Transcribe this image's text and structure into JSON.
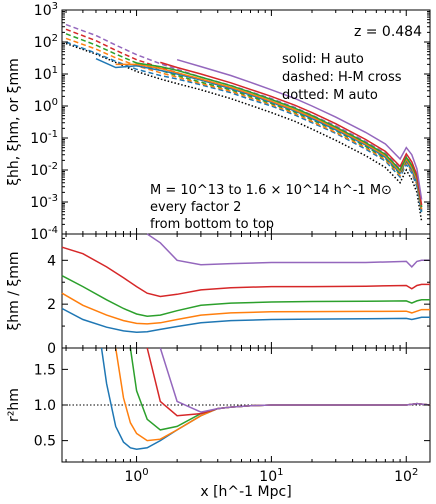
{
  "chart_data": [
    {
      "type": "line",
      "panel": "top",
      "ylabel": "ξhh, ξhm, or ξmm",
      "yscale": "log",
      "xscale": "log",
      "xlim": [
        0.28,
        150
      ],
      "ylim": [
        0.0001,
        1000
      ],
      "y_tick_labels": [
        "10^-4",
        "10^-3",
        "10^-2",
        "10^-1",
        "10^0",
        "10^1",
        "10^2",
        "10^3"
      ],
      "annotations": {
        "redshift": "z = 0.484",
        "legend_solid": "solid: H auto",
        "legend_dashed": "dashed: H-M cross",
        "legend_dotted": "dotted: M auto",
        "mass_line1": "M = 10^13 to 1.6 × 10^14 h^-1 M⊙",
        "mass_line2": "every factor 2",
        "mass_line3": "from bottom to top"
      },
      "colors": [
        "#1f77b4",
        "#ff7f0e",
        "#2ca02c",
        "#d62728",
        "#9467bd"
      ],
      "x": [
        0.3,
        0.5,
        0.7,
        1,
        1.5,
        2,
        3,
        5,
        7,
        10,
        15,
        20,
        30,
        50,
        70,
        90,
        100,
        110,
        120,
        130
      ],
      "series_solid": [
        [
          null,
          30,
          16,
          18,
          13,
          10,
          6.5,
          3.5,
          2.2,
          1.3,
          0.7,
          0.4,
          0.18,
          0.06,
          0.025,
          0.008,
          0.02,
          0.01,
          0.004,
          0.0005
        ],
        [
          null,
          null,
          20,
          20,
          15,
          11,
          7,
          3.8,
          2.4,
          1.4,
          0.75,
          0.45,
          0.2,
          0.065,
          0.028,
          0.009,
          0.022,
          0.012,
          0.005,
          0.0006
        ],
        [
          null,
          null,
          null,
          22,
          17,
          13,
          8,
          4.3,
          2.7,
          1.6,
          0.85,
          0.5,
          0.22,
          0.072,
          0.031,
          0.01,
          0.025,
          0.014,
          0.006,
          0.0007
        ],
        [
          null,
          null,
          null,
          null,
          23,
          16,
          10,
          5.3,
          3.3,
          2,
          1.05,
          0.62,
          0.28,
          0.09,
          0.038,
          0.013,
          0.032,
          0.018,
          0.007,
          0.0008
        ],
        [
          null,
          null,
          null,
          null,
          null,
          28,
          17,
          9,
          5.5,
          3.2,
          1.7,
          1,
          0.45,
          0.15,
          0.065,
          0.022,
          0.05,
          0.03,
          0.011,
          0.0012
        ]
      ],
      "series_dashed": [
        [
          100,
          45,
          25,
          14,
          9,
          7,
          4.6,
          2.6,
          1.6,
          1,
          0.52,
          0.3,
          0.14,
          0.045,
          0.019,
          0.006,
          0.015,
          0.008,
          0.003,
          0.0004
        ],
        [
          130,
          60,
          32,
          18,
          11,
          8,
          5,
          2.9,
          1.8,
          1.1,
          0.58,
          0.33,
          0.15,
          0.05,
          0.021,
          0.0068,
          0.017,
          0.009,
          0.0035,
          0.00045
        ],
        [
          180,
          80,
          42,
          22,
          13,
          9,
          5.6,
          3.2,
          2,
          1.2,
          0.64,
          0.37,
          0.17,
          0.055,
          0.023,
          0.0075,
          0.019,
          0.01,
          0.004,
          0.0005
        ],
        [
          250,
          110,
          55,
          28,
          16,
          11,
          6.5,
          3.6,
          2.3,
          1.4,
          0.72,
          0.42,
          0.19,
          0.062,
          0.026,
          0.0085,
          0.021,
          0.011,
          0.0045,
          0.00055
        ],
        [
          350,
          160,
          80,
          40,
          21,
          14,
          8,
          4.4,
          2.8,
          1.7,
          0.9,
          0.52,
          0.24,
          0.078,
          0.033,
          0.011,
          0.027,
          0.014,
          0.0055,
          0.0007
        ]
      ],
      "series_dotted": [
        90,
        42,
        23,
        12,
        7,
        5,
        3.2,
        1.7,
        1.05,
        0.62,
        0.33,
        0.19,
        0.085,
        0.028,
        0.012,
        0.004,
        0.01,
        0.005,
        0.002,
        0.00025
      ]
    },
    {
      "type": "line",
      "panel": "middle",
      "ylabel": "ξhm / ξmm",
      "xscale": "log",
      "xlim": [
        0.28,
        150
      ],
      "ylim": [
        0,
        5.2
      ],
      "y_ticks": [
        0,
        2,
        4
      ],
      "x": [
        0.28,
        0.4,
        0.6,
        0.8,
        1,
        1.2,
        1.5,
        2,
        3,
        5,
        10,
        20,
        50,
        100,
        110,
        120,
        130,
        150
      ],
      "series": [
        [
          1.8,
          1.3,
          0.95,
          0.78,
          0.72,
          0.74,
          0.85,
          0.98,
          1.15,
          1.25,
          1.3,
          1.32,
          1.33,
          1.35,
          1.3,
          1.35,
          1.4,
          1.4
        ],
        [
          2.5,
          1.95,
          1.5,
          1.25,
          1.12,
          1.1,
          1.15,
          1.3,
          1.5,
          1.6,
          1.65,
          1.66,
          1.67,
          1.68,
          1.6,
          1.68,
          1.75,
          1.75
        ],
        [
          3.3,
          2.8,
          2.2,
          1.8,
          1.55,
          1.45,
          1.5,
          1.7,
          1.95,
          2.05,
          2.1,
          2.12,
          2.13,
          2.15,
          2.05,
          2.15,
          2.2,
          2.2
        ],
        [
          4.6,
          4.3,
          3.7,
          3.2,
          2.8,
          2.5,
          2.35,
          2.45,
          2.65,
          2.75,
          2.8,
          2.8,
          2.82,
          2.85,
          2.7,
          2.85,
          2.9,
          2.9
        ],
        [
          null,
          null,
          null,
          null,
          null,
          5.2,
          4.8,
          4.0,
          3.8,
          3.85,
          3.9,
          3.9,
          3.9,
          3.95,
          3.7,
          3.95,
          4.0,
          4.0
        ]
      ]
    },
    {
      "type": "line",
      "panel": "bottom",
      "ylabel": "r²hm",
      "xscale": "log",
      "xlabel": "x [h^-1 Mpc]",
      "x_tick_labels": [
        "10^0",
        "10^1",
        "10^2"
      ],
      "xlim": [
        0.28,
        150
      ],
      "ylim": [
        0.2,
        1.8
      ],
      "y_ticks": [
        0.5,
        1.0,
        1.5
      ],
      "reference_line": 1.0,
      "x": [
        0.55,
        0.6,
        0.7,
        0.8,
        0.9,
        1,
        1.2,
        1.5,
        2,
        3,
        4,
        5,
        7,
        10,
        20,
        50,
        100,
        120,
        150
      ],
      "series": [
        [
          1.8,
          1.3,
          0.7,
          0.48,
          0.4,
          0.38,
          0.4,
          0.5,
          0.65,
          0.85,
          0.95,
          0.97,
          0.99,
          1.0,
          1.0,
          1.0,
          1.0,
          1.02,
          1.0
        ],
        [
          null,
          null,
          1.8,
          1.1,
          0.75,
          0.6,
          0.5,
          0.52,
          0.65,
          0.85,
          0.95,
          0.97,
          0.99,
          1.0,
          1.0,
          1.0,
          1.0,
          1.02,
          1.0
        ],
        [
          null,
          null,
          null,
          null,
          1.8,
          1.2,
          0.8,
          0.65,
          0.7,
          0.88,
          0.95,
          0.97,
          0.99,
          1.0,
          1.0,
          1.0,
          1.0,
          1.02,
          1.0
        ],
        [
          null,
          null,
          null,
          null,
          null,
          null,
          1.8,
          1.05,
          0.85,
          0.88,
          0.95,
          0.97,
          0.99,
          1.0,
          1.0,
          1.0,
          1.0,
          1.02,
          1.0
        ],
        [
          null,
          null,
          null,
          null,
          null,
          null,
          null,
          1.8,
          1.05,
          0.9,
          0.95,
          0.97,
          0.99,
          1.0,
          1.0,
          1.0,
          1.0,
          1.02,
          1.0
        ]
      ]
    }
  ]
}
